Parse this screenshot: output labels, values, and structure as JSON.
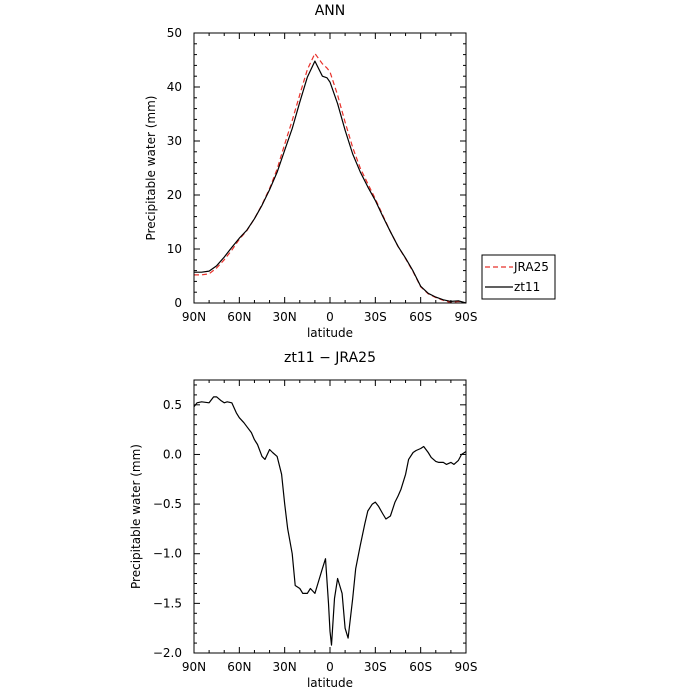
{
  "chart_data": [
    {
      "type": "line",
      "title": "ANN",
      "xlabel": "latitude",
      "ylabel": "Precipitable water (mm)",
      "xlim": [
        90,
        -90
      ],
      "ylim": [
        0,
        50
      ],
      "x_ticks": [
        90,
        60,
        30,
        0,
        -30,
        -60,
        -90
      ],
      "x_tick_labels": [
        "90N",
        "60N",
        "30N",
        "0",
        "30S",
        "60S",
        "90S"
      ],
      "y_ticks": [
        0,
        10,
        20,
        30,
        40,
        50
      ],
      "y_tick_labels": [
        "0",
        "10",
        "20",
        "30",
        "40",
        "50"
      ],
      "legend_position": "right",
      "series": [
        {
          "name": "JRA25",
          "color": "#e8302a",
          "dash": "dashed",
          "x": [
            90,
            85,
            80,
            75,
            70,
            65,
            60,
            55,
            50,
            45,
            40,
            35,
            30,
            25,
            20,
            15,
            10,
            5,
            2,
            0,
            -5,
            -10,
            -15,
            -20,
            -25,
            -30,
            -35,
            -40,
            -45,
            -50,
            -55,
            -60,
            -65,
            -70,
            -75,
            -80,
            -85,
            -90
          ],
          "y": [
            5.2,
            5.2,
            5.4,
            6.5,
            8.0,
            9.8,
            11.8,
            13.4,
            15.6,
            18.2,
            21.2,
            24.8,
            29.4,
            33.8,
            38.6,
            43.2,
            46.2,
            44.3,
            43.5,
            42.8,
            38.5,
            33.5,
            28.8,
            25.0,
            22.1,
            19.3,
            16.2,
            13.2,
            10.5,
            8.2,
            5.8,
            3.0,
            1.7,
            1.0,
            0.5,
            0.1,
            0.3,
            0.0
          ]
        },
        {
          "name": "zt11",
          "color": "#000000",
          "dash": "solid",
          "x": [
            90,
            85,
            80,
            75,
            70,
            65,
            60,
            55,
            50,
            45,
            40,
            35,
            30,
            25,
            20,
            15,
            10,
            5,
            2,
            0,
            -5,
            -10,
            -15,
            -20,
            -25,
            -30,
            -35,
            -40,
            -45,
            -50,
            -55,
            -60,
            -65,
            -70,
            -75,
            -80,
            -85,
            -90
          ],
          "y": [
            5.7,
            5.7,
            5.9,
            6.9,
            8.5,
            10.3,
            12.0,
            13.5,
            15.6,
            18.1,
            21.0,
            24.2,
            28.3,
            32.3,
            37.2,
            41.8,
            44.8,
            42.0,
            41.7,
            40.9,
            36.9,
            32.0,
            27.6,
            24.3,
            21.5,
            19.0,
            16.0,
            13.2,
            10.5,
            8.3,
            5.9,
            3.1,
            1.8,
            1.1,
            0.6,
            0.3,
            0.4,
            0.0
          ]
        }
      ]
    },
    {
      "type": "line",
      "title": "zt11 − JRA25",
      "xlabel": "latitude",
      "ylabel": "Precipitable water (mm)",
      "xlim": [
        90,
        -90
      ],
      "ylim": [
        -2.0,
        0.75
      ],
      "x_ticks": [
        90,
        60,
        30,
        0,
        -30,
        -60,
        -90
      ],
      "x_tick_labels": [
        "90N",
        "60N",
        "30N",
        "0",
        "30S",
        "60S",
        "90S"
      ],
      "y_ticks": [
        0.5,
        0.0,
        -0.5,
        -1.0,
        -1.5,
        -2.0
      ],
      "y_tick_labels": [
        "0.5",
        "0.0",
        "−0.5",
        "−1.0",
        "−1.5",
        "−2.0"
      ],
      "series": [
        {
          "name": "",
          "color": "#000000",
          "dash": "solid",
          "x": [
            90,
            88,
            85,
            80,
            77,
            75,
            72,
            70,
            68,
            65,
            62,
            60,
            57,
            55,
            52,
            50,
            48,
            45,
            43,
            40,
            38,
            35,
            32,
            30,
            28,
            25,
            23,
            20,
            18,
            15,
            13,
            10,
            8,
            5,
            3,
            1,
            0,
            -1,
            -3,
            -5,
            -8,
            -10,
            -12,
            -15,
            -17,
            -20,
            -23,
            -25,
            -28,
            -30,
            -32,
            -35,
            -37,
            -40,
            -43,
            -45,
            -47,
            -50,
            -52,
            -55,
            -57,
            -60,
            -62,
            -65,
            -67,
            -70,
            -72,
            -75,
            -77,
            -80,
            -82,
            -85,
            -87,
            -90
          ],
          "y": [
            0.48,
            0.52,
            0.53,
            0.52,
            0.58,
            0.58,
            0.54,
            0.52,
            0.53,
            0.52,
            0.42,
            0.37,
            0.32,
            0.28,
            0.22,
            0.15,
            0.1,
            -0.02,
            -0.05,
            0.05,
            0.02,
            -0.02,
            -0.2,
            -0.5,
            -0.75,
            -1.0,
            -1.32,
            -1.35,
            -1.4,
            -1.4,
            -1.35,
            -1.4,
            -1.3,
            -1.15,
            -1.05,
            -1.5,
            -1.78,
            -1.92,
            -1.45,
            -1.25,
            -1.4,
            -1.75,
            -1.85,
            -1.45,
            -1.15,
            -0.92,
            -0.7,
            -0.57,
            -0.5,
            -0.48,
            -0.52,
            -0.6,
            -0.65,
            -0.62,
            -0.48,
            -0.42,
            -0.35,
            -0.2,
            -0.05,
            0.02,
            0.04,
            0.06,
            0.08,
            0.02,
            -0.03,
            -0.07,
            -0.08,
            -0.08,
            -0.1,
            -0.08,
            -0.1,
            -0.06,
            0.0,
            0.03
          ]
        }
      ]
    }
  ]
}
